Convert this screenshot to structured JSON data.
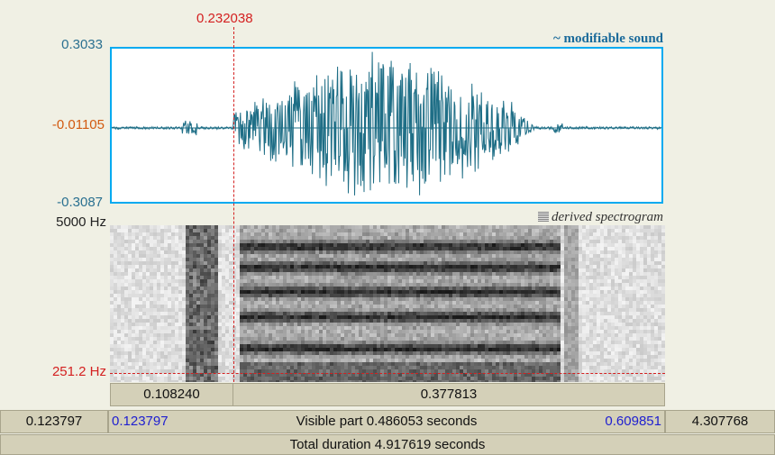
{
  "cursor": {
    "time_label": "0.232038"
  },
  "waveform": {
    "title": "~ modifiable sound",
    "y_max": "0.3033",
    "y_cursor": "-0.01105",
    "y_min": "-0.3087",
    "color": "#1e6e86",
    "border_color": "#00aaf0"
  },
  "spectrogram": {
    "title": "derived spectrogram",
    "freq_max": "5000 Hz",
    "freq_cursor": "251.2 Hz"
  },
  "selection_bar": {
    "left_label": "0.108240",
    "right_label": "0.377813"
  },
  "visible_bar": {
    "left_outer": "0.123797",
    "left_inner": "0.123797",
    "center": "Visible part 0.486053 seconds",
    "right_inner": "0.609851",
    "right_outer": "4.307768"
  },
  "total_bar": {
    "label": "Total duration 4.917619 seconds"
  }
}
